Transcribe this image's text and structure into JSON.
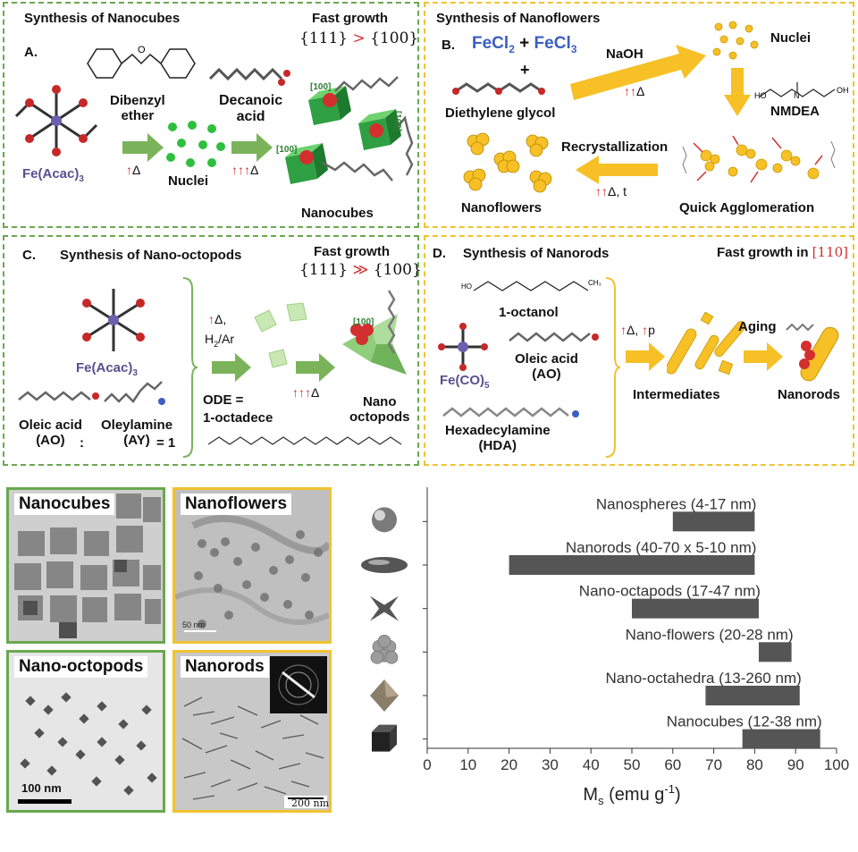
{
  "panelA": {
    "title": "Synthesis of Nanocubes",
    "letter": "A.",
    "fast_growth": "Fast growth",
    "facets_prefix": "{111}",
    "facets_op": ">",
    "facets_suffix": "{100}",
    "precursor": "Fe(Acac)",
    "precursor_sub": "3",
    "solvent": "Dibenzyl\nether",
    "ligand": "Decanoic\nacid",
    "heat1": "Δ",
    "heat2": "Δ",
    "nuclei": "Nuclei",
    "product": "Nanocubes",
    "facet_label_1": "[100]",
    "facet_label_2": "[100]",
    "facet_label_3": "[100]"
  },
  "panelB": {
    "title": "Synthesis of Nanoflowers",
    "letter": "B.",
    "reagent1": "FeCl",
    "reagent1_sub": "2",
    "plus": "+",
    "reagent2": "FeCl",
    "reagent2_sub": "3",
    "solvent": "Diethylene glycol",
    "base": "NaOH",
    "heat": "Δ",
    "nuclei": "Nuclei",
    "additive": "NMDEA",
    "step2": "Recrystallization",
    "heat2": "Δ, t",
    "agglomeration": "Quick Agglomeration",
    "product": "Nanoflowers"
  },
  "panelC": {
    "title": "Synthesis of Nano-octopods",
    "letter": "C.",
    "fast_growth": "Fast growth",
    "facets_prefix": "{111}",
    "facets_op": "≫",
    "facets_suffix": "{100}",
    "precursor": "Fe(Acac)",
    "precursor_sub": "3",
    "heat": "Δ,",
    "atmosphere": "H",
    "atmosphere_sub": "2",
    "atmosphere_rest": "/Ar",
    "solvent1": "ODE =",
    "solvent2": "1-octadece",
    "heat2": "Δ",
    "ligand1": "Oleic acid\n(AO)",
    "ligand2": "Oleylamine\n(AY)",
    "ratio_sep": ":",
    "ratio_end": "= 1",
    "product": "Nano\noctopods",
    "facet_label": "[100]"
  },
  "panelD": {
    "title": "Synthesis of Nanorods",
    "letter": "D.",
    "fast_growth": "Fast growth in ",
    "facet": "[110]",
    "alcohol": "1-octanol",
    "precursor": "Fe(CO)",
    "precursor_sub": "5",
    "ligand1": "Oleic acid\n(AO)",
    "ligand2": "Hexadecylamine\n(HDA)",
    "conditions_heat": "Δ, ",
    "conditions_p": "p",
    "intermediates": "Intermediates",
    "aging": "Aging",
    "product": "Nanorods"
  },
  "micrographs": {
    "nanocubes": "Nanocubes",
    "nanoflowers": "Nanoflowers",
    "nanooctopods": "Nano-octopods",
    "nanorods": "Nanorods",
    "scale_cubes": "",
    "scale_flowers": "50 nm",
    "scale_octopods": "100 nm",
    "scale_rods": "200 nm",
    "colors": {
      "green_border": "#6aa84f",
      "yellow_border": "#f1c232"
    }
  },
  "chart_data": {
    "type": "bar",
    "orientation": "horizontal-range",
    "xlabel_main": "M",
    "xlabel_sub": "s",
    "xlabel_units": " (emu g",
    "xlabel_sup": "-1",
    "xlabel_close": ")",
    "xlim": [
      0,
      100
    ],
    "xticks": [
      "0",
      "10",
      "20",
      "30",
      "40",
      "50",
      "60",
      "70",
      "80",
      "90",
      "100"
    ],
    "bar_color": "#555555",
    "series": [
      {
        "name": "Nanospheres (4-17 nm)",
        "start": 60,
        "end": 80,
        "icon": "sphere-icon"
      },
      {
        "name": "Nanorods (40-70 x 5-10 nm)",
        "start": 20,
        "end": 80,
        "icon": "ellipsoid-icon"
      },
      {
        "name": "Nano-octapods (17-47 nm)",
        "start": 50,
        "end": 81,
        "icon": "octapod-icon"
      },
      {
        "name": "Nano-flowers (20-28 nm)",
        "start": 81,
        "end": 89,
        "icon": "flower-icon"
      },
      {
        "name": "Nano-octahedra (13-260 nm)",
        "start": 68,
        "end": 91,
        "icon": "octahedron-icon"
      },
      {
        "name": "Nanocubes (12-38 nm)",
        "start": 77,
        "end": 96,
        "icon": "cube-icon"
      }
    ]
  }
}
